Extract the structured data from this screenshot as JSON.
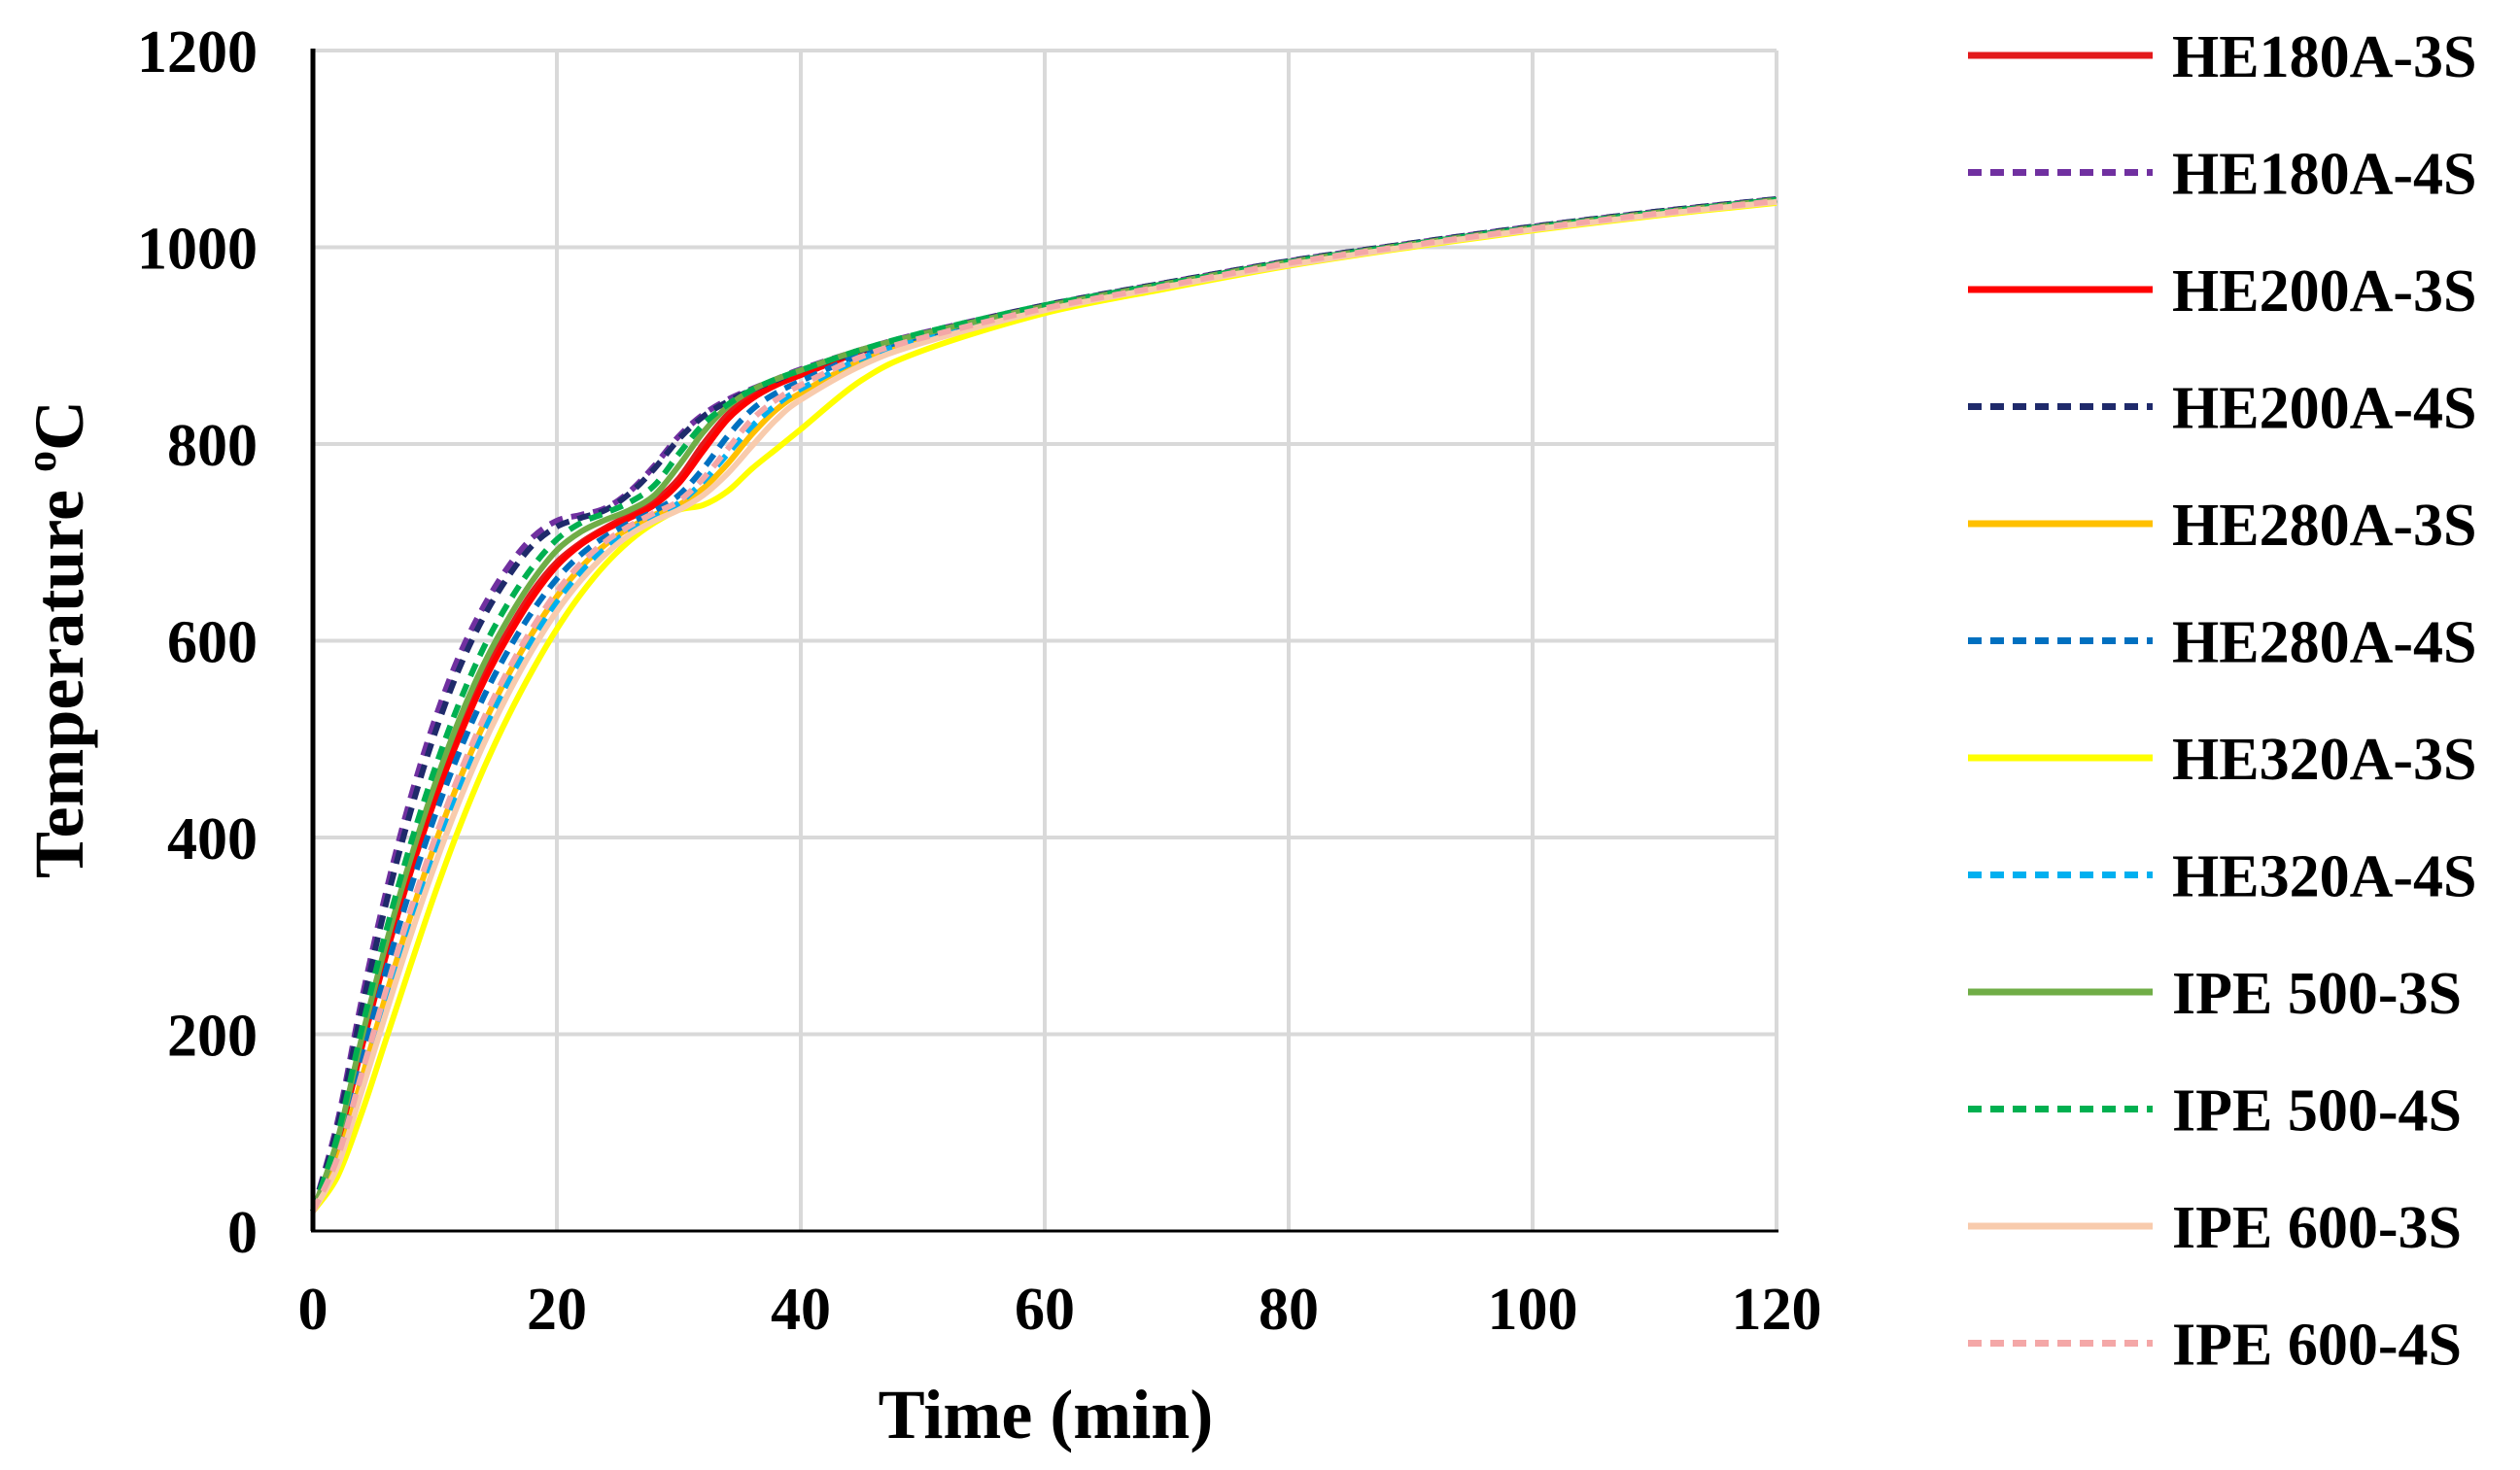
{
  "chart_data": {
    "type": "line",
    "title": "",
    "xlabel": "Time (min)",
    "ylabel_main": "Temperature ",
    "ylabel_sup": "o",
    "ylabel_unit": "C",
    "xlim": [
      0,
      120
    ],
    "ylim": [
      0,
      1200
    ],
    "xticks": [
      "0",
      "20",
      "40",
      "60",
      "80",
      "100",
      "120"
    ],
    "yticks": [
      "0",
      "200",
      "400",
      "600",
      "800",
      "1000",
      "1200"
    ],
    "grid": true,
    "legend_position": "right",
    "series": [
      {
        "name": "HE180A-3S",
        "color": "#e31a1c",
        "dash": "solid",
        "x": [
          0,
          2,
          4,
          6,
          8,
          10,
          12,
          14,
          16,
          18,
          20,
          22,
          24,
          26,
          28,
          30,
          32,
          34,
          36,
          38,
          40,
          45,
          50,
          60,
          70,
          80,
          90,
          100,
          110,
          120
        ],
        "y": [
          20,
          90,
          190,
          285,
          370,
          445,
          510,
          565,
          610,
          650,
          680,
          700,
          715,
          728,
          742,
          765,
          800,
          830,
          850,
          862,
          872,
          895,
          912,
          940,
          963,
          985,
          1003,
          1020,
          1035,
          1048
        ]
      },
      {
        "name": "HE180A-4S",
        "color": "#7030a0",
        "dash": "dashed",
        "x": [
          0,
          2,
          4,
          6,
          8,
          10,
          12,
          14,
          16,
          18,
          20,
          22,
          24,
          26,
          28,
          30,
          32,
          34,
          36,
          38,
          40,
          45,
          50,
          60,
          70,
          80,
          90,
          100,
          110,
          120
        ],
        "y": [
          20,
          110,
          235,
          345,
          440,
          520,
          585,
          635,
          675,
          705,
          722,
          728,
          735,
          752,
          778,
          808,
          830,
          845,
          856,
          866,
          876,
          896,
          913,
          941,
          964,
          986,
          1004,
          1021,
          1036,
          1049
        ]
      },
      {
        "name": "HE200A-3S",
        "color": "#ff0000",
        "dash": "solid",
        "x": [
          0,
          2,
          4,
          6,
          8,
          10,
          12,
          14,
          16,
          18,
          20,
          22,
          24,
          26,
          28,
          30,
          32,
          34,
          36,
          38,
          40,
          45,
          50,
          60,
          70,
          80,
          90,
          100,
          110,
          120
        ],
        "y": [
          20,
          88,
          186,
          280,
          364,
          438,
          502,
          558,
          604,
          644,
          676,
          698,
          713,
          725,
          738,
          760,
          793,
          825,
          846,
          860,
          870,
          894,
          911,
          940,
          963,
          985,
          1003,
          1020,
          1035,
          1048
        ]
      },
      {
        "name": "HE200A-4S",
        "color": "#1f2a6b",
        "dash": "dashed",
        "x": [
          0,
          2,
          4,
          6,
          8,
          10,
          12,
          14,
          16,
          18,
          20,
          22,
          24,
          26,
          28,
          30,
          32,
          34,
          36,
          38,
          40,
          45,
          50,
          60,
          70,
          80,
          90,
          100,
          110,
          120
        ],
        "y": [
          20,
          105,
          225,
          333,
          426,
          506,
          572,
          624,
          665,
          697,
          716,
          725,
          733,
          750,
          775,
          805,
          828,
          843,
          855,
          865,
          875,
          895,
          912,
          941,
          964,
          986,
          1004,
          1021,
          1036,
          1049
        ]
      },
      {
        "name": "HE280A-3S",
        "color": "#ffc000",
        "dash": "solid",
        "x": [
          0,
          2,
          4,
          6,
          8,
          10,
          12,
          14,
          16,
          18,
          20,
          22,
          24,
          26,
          28,
          30,
          32,
          34,
          36,
          38,
          40,
          45,
          50,
          60,
          70,
          80,
          90,
          100,
          110,
          120
        ],
        "y": [
          20,
          72,
          155,
          240,
          320,
          393,
          458,
          515,
          565,
          608,
          645,
          675,
          698,
          715,
          728,
          738,
          755,
          780,
          810,
          835,
          852,
          885,
          906,
          937,
          961,
          983,
          1002,
          1019,
          1034,
          1047
        ]
      },
      {
        "name": "HE280A-4S",
        "color": "#0070c0",
        "dash": "dashed",
        "x": [
          0,
          2,
          4,
          6,
          8,
          10,
          12,
          14,
          16,
          18,
          20,
          22,
          24,
          26,
          28,
          30,
          32,
          34,
          36,
          38,
          40,
          45,
          50,
          60,
          70,
          80,
          90,
          100,
          110,
          120
        ],
        "y": [
          20,
          82,
          175,
          265,
          348,
          422,
          487,
          543,
          590,
          630,
          663,
          688,
          706,
          720,
          732,
          748,
          775,
          808,
          835,
          852,
          864,
          891,
          910,
          939,
          962,
          984,
          1003,
          1020,
          1035,
          1048
        ]
      },
      {
        "name": "HE320A-3S",
        "color": "#ffff00",
        "dash": "solid",
        "x": [
          0,
          2,
          4,
          6,
          8,
          10,
          12,
          14,
          16,
          18,
          20,
          22,
          24,
          26,
          28,
          30,
          32,
          34,
          36,
          38,
          40,
          45,
          50,
          60,
          70,
          80,
          90,
          100,
          110,
          120
        ],
        "y": [
          20,
          55,
          120,
          195,
          270,
          343,
          410,
          470,
          523,
          570,
          612,
          648,
          678,
          702,
          720,
          733,
          738,
          752,
          775,
          795,
          815,
          865,
          895,
          933,
          958,
          981,
          1000,
          1017,
          1032,
          1045
        ]
      },
      {
        "name": "HE320A-4S",
        "color": "#00b0f0",
        "dash": "dashed",
        "x": [
          0,
          2,
          4,
          6,
          8,
          10,
          12,
          14,
          16,
          18,
          20,
          22,
          24,
          26,
          28,
          30,
          32,
          34,
          36,
          38,
          40,
          45,
          50,
          60,
          70,
          80,
          90,
          100,
          110,
          120
        ],
        "y": [
          20,
          70,
          150,
          233,
          312,
          385,
          450,
          507,
          557,
          601,
          639,
          670,
          694,
          712,
          726,
          740,
          762,
          790,
          818,
          840,
          856,
          887,
          907,
          938,
          961,
          984,
          1002,
          1019,
          1034,
          1047
        ]
      },
      {
        "name": "IPE 500-3S",
        "color": "#70ad47",
        "dash": "solid",
        "x": [
          0,
          2,
          4,
          6,
          8,
          10,
          12,
          14,
          16,
          18,
          20,
          22,
          24,
          26,
          28,
          30,
          32,
          34,
          36,
          38,
          40,
          45,
          50,
          60,
          70,
          80,
          90,
          100,
          110,
          120
        ],
        "y": [
          20,
          92,
          196,
          292,
          378,
          454,
          520,
          576,
          622,
          661,
          692,
          711,
          723,
          733,
          748,
          778,
          812,
          838,
          855,
          866,
          875,
          896,
          912,
          940,
          963,
          985,
          1003,
          1020,
          1035,
          1048
        ]
      },
      {
        "name": "IPE 500-4S",
        "color": "#00b050",
        "dash": "dashed",
        "x": [
          0,
          2,
          4,
          6,
          8,
          10,
          12,
          14,
          16,
          18,
          20,
          22,
          24,
          26,
          28,
          30,
          32,
          34,
          36,
          38,
          40,
          45,
          50,
          60,
          70,
          80,
          90,
          100,
          110,
          120
        ],
        "y": [
          20,
          96,
          205,
          305,
          393,
          470,
          537,
          593,
          638,
          675,
          703,
          720,
          730,
          741,
          758,
          790,
          820,
          840,
          855,
          866,
          875,
          896,
          913,
          941,
          963,
          985,
          1003,
          1020,
          1035,
          1048
        ]
      },
      {
        "name": "IPE 600-3S",
        "color": "#f8cbad",
        "dash": "solid",
        "x": [
          0,
          2,
          4,
          6,
          8,
          10,
          12,
          14,
          16,
          18,
          20,
          22,
          24,
          26,
          28,
          30,
          32,
          34,
          36,
          38,
          40,
          45,
          50,
          60,
          70,
          80,
          90,
          100,
          110,
          120
        ],
        "y": [
          20,
          65,
          142,
          222,
          300,
          372,
          437,
          495,
          546,
          591,
          630,
          662,
          688,
          708,
          722,
          733,
          748,
          770,
          798,
          825,
          845,
          880,
          903,
          936,
          960,
          982,
          1001,
          1018,
          1033,
          1046
        ]
      },
      {
        "name": "IPE 600-4S",
        "color": "#f4a7a7",
        "dash": "dashed",
        "x": [
          0,
          2,
          4,
          6,
          8,
          10,
          12,
          14,
          16,
          18,
          20,
          22,
          24,
          26,
          28,
          30,
          32,
          34,
          36,
          38,
          40,
          45,
          50,
          60,
          70,
          80,
          90,
          100,
          110,
          120
        ],
        "y": [
          20,
          74,
          160,
          245,
          326,
          399,
          464,
          521,
          570,
          613,
          650,
          679,
          701,
          717,
          730,
          742,
          765,
          795,
          825,
          845,
          860,
          889,
          908,
          938,
          961,
          984,
          1002,
          1019,
          1034,
          1047
        ]
      }
    ]
  }
}
